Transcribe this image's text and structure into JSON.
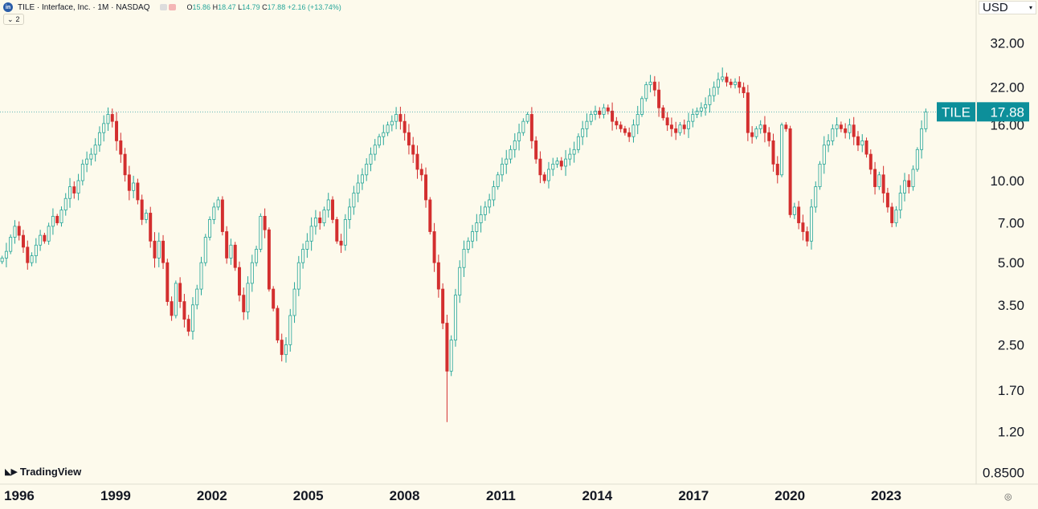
{
  "header": {
    "logo_text": "in",
    "symbol_line": "TILE · Interface, Inc. · 1M · NASDAQ",
    "open_label": "O",
    "open": "15.86",
    "high_label": "H",
    "high": "18.47",
    "low_label": "L",
    "low": "14.79",
    "close_label": "C",
    "close": "17.88",
    "change": "+2.16 (+13.74%)",
    "indicator_toggle": "2"
  },
  "currency": "USD",
  "brand": "TradingView",
  "colors": {
    "up": "#26a69a",
    "down": "#d32f2f",
    "badge": "#0d8f9a",
    "background": "#fdfaec"
  },
  "chart_data": {
    "type": "candlestick",
    "scale": "log",
    "interval": "1M",
    "symbol_badge": "TILE",
    "last_price": "17.88",
    "ylim": [
      0.77,
      46
    ],
    "y_ticks": [
      "32.00",
      "22.00",
      "16.00",
      "10.00",
      "7.00",
      "5.00",
      "3.50",
      "2.50",
      "1.70",
      "1.20",
      "0.8500"
    ],
    "x_ticks": [
      "1996",
      "1999",
      "2002",
      "2005",
      "2008",
      "2011",
      "2014",
      "2017",
      "2020",
      "2023"
    ],
    "x_start_year": 1995.4,
    "x_end_year": 2024.3,
    "closes": [
      5.2,
      5.5,
      6.2,
      6.8,
      6.3,
      5.7,
      5.0,
      5.3,
      5.8,
      6.3,
      6.0,
      6.8,
      7.4,
      7.0,
      7.8,
      8.6,
      9.5,
      9.0,
      10.0,
      11.5,
      12.0,
      12.5,
      13.5,
      15.0,
      16.2,
      17.5,
      16.5,
      14.0,
      12.5,
      10.5,
      9.2,
      9.8,
      8.5,
      7.2,
      7.6,
      6.0,
      5.2,
      6.0,
      5.0,
      3.6,
      3.2,
      4.2,
      3.6,
      3.1,
      2.8,
      3.5,
      4.0,
      5.0,
      6.2,
      7.2,
      8.0,
      8.5,
      6.5,
      5.2,
      5.8,
      4.8,
      3.8,
      3.3,
      4.2,
      5.0,
      5.6,
      7.4,
      6.6,
      4.0,
      3.4,
      2.6,
      2.3,
      2.5,
      3.2,
      4.0,
      5.0,
      5.6,
      6.0,
      6.8,
      7.3,
      7.0,
      7.8,
      8.5,
      7.2,
      6.0,
      5.8,
      7.2,
      8.0,
      9.0,
      9.8,
      10.5,
      11.5,
      12.5,
      13.5,
      14.5,
      15.0,
      16.0,
      16.5,
      17.5,
      16.5,
      15.0,
      13.5,
      12.5,
      11.0,
      10.5,
      8.5,
      6.5,
      5.0,
      4.0,
      3.0,
      2.0,
      2.6,
      3.8,
      4.8,
      5.6,
      6.0,
      6.5,
      7.0,
      7.5,
      8.0,
      8.5,
      9.5,
      10.5,
      11.5,
      12.0,
      13.0,
      14.0,
      15.0,
      16.5,
      17.5,
      14.0,
      12.0,
      10.5,
      10.0,
      11.0,
      11.5,
      11.8,
      11.3,
      12.0,
      12.5,
      13.0,
      14.5,
      15.5,
      16.5,
      17.5,
      18.0,
      17.5,
      18.5,
      18.0,
      16.5,
      16.0,
      15.5,
      15.0,
      14.5,
      16.0,
      17.5,
      20.0,
      22.5,
      23.0,
      21.5,
      18.5,
      17.0,
      16.0,
      15.5,
      15.0,
      16.0,
      15.5,
      16.5,
      17.5,
      18.0,
      18.5,
      19.0,
      20.5,
      22.0,
      23.5,
      24.0,
      23.0,
      22.5,
      23.0,
      22.0,
      21.0,
      15.0,
      14.5,
      15.5,
      16.0,
      15.0,
      14.0,
      11.5,
      10.5,
      16.0,
      15.5,
      7.5,
      8.0,
      7.0,
      6.5,
      6.0,
      8.0,
      9.5,
      11.5,
      13.5,
      14.0,
      15.5,
      16.0,
      15.5,
      15.0,
      16.0,
      14.5,
      13.5,
      14.0,
      12.5,
      11.0,
      9.5,
      10.5,
      9.0,
      8.0,
      7.0,
      7.8,
      9.0,
      10.0,
      9.5,
      11.0,
      13.0,
      15.5,
      17.88
    ],
    "min_wick": 1.3,
    "max_wick": 26.0
  }
}
